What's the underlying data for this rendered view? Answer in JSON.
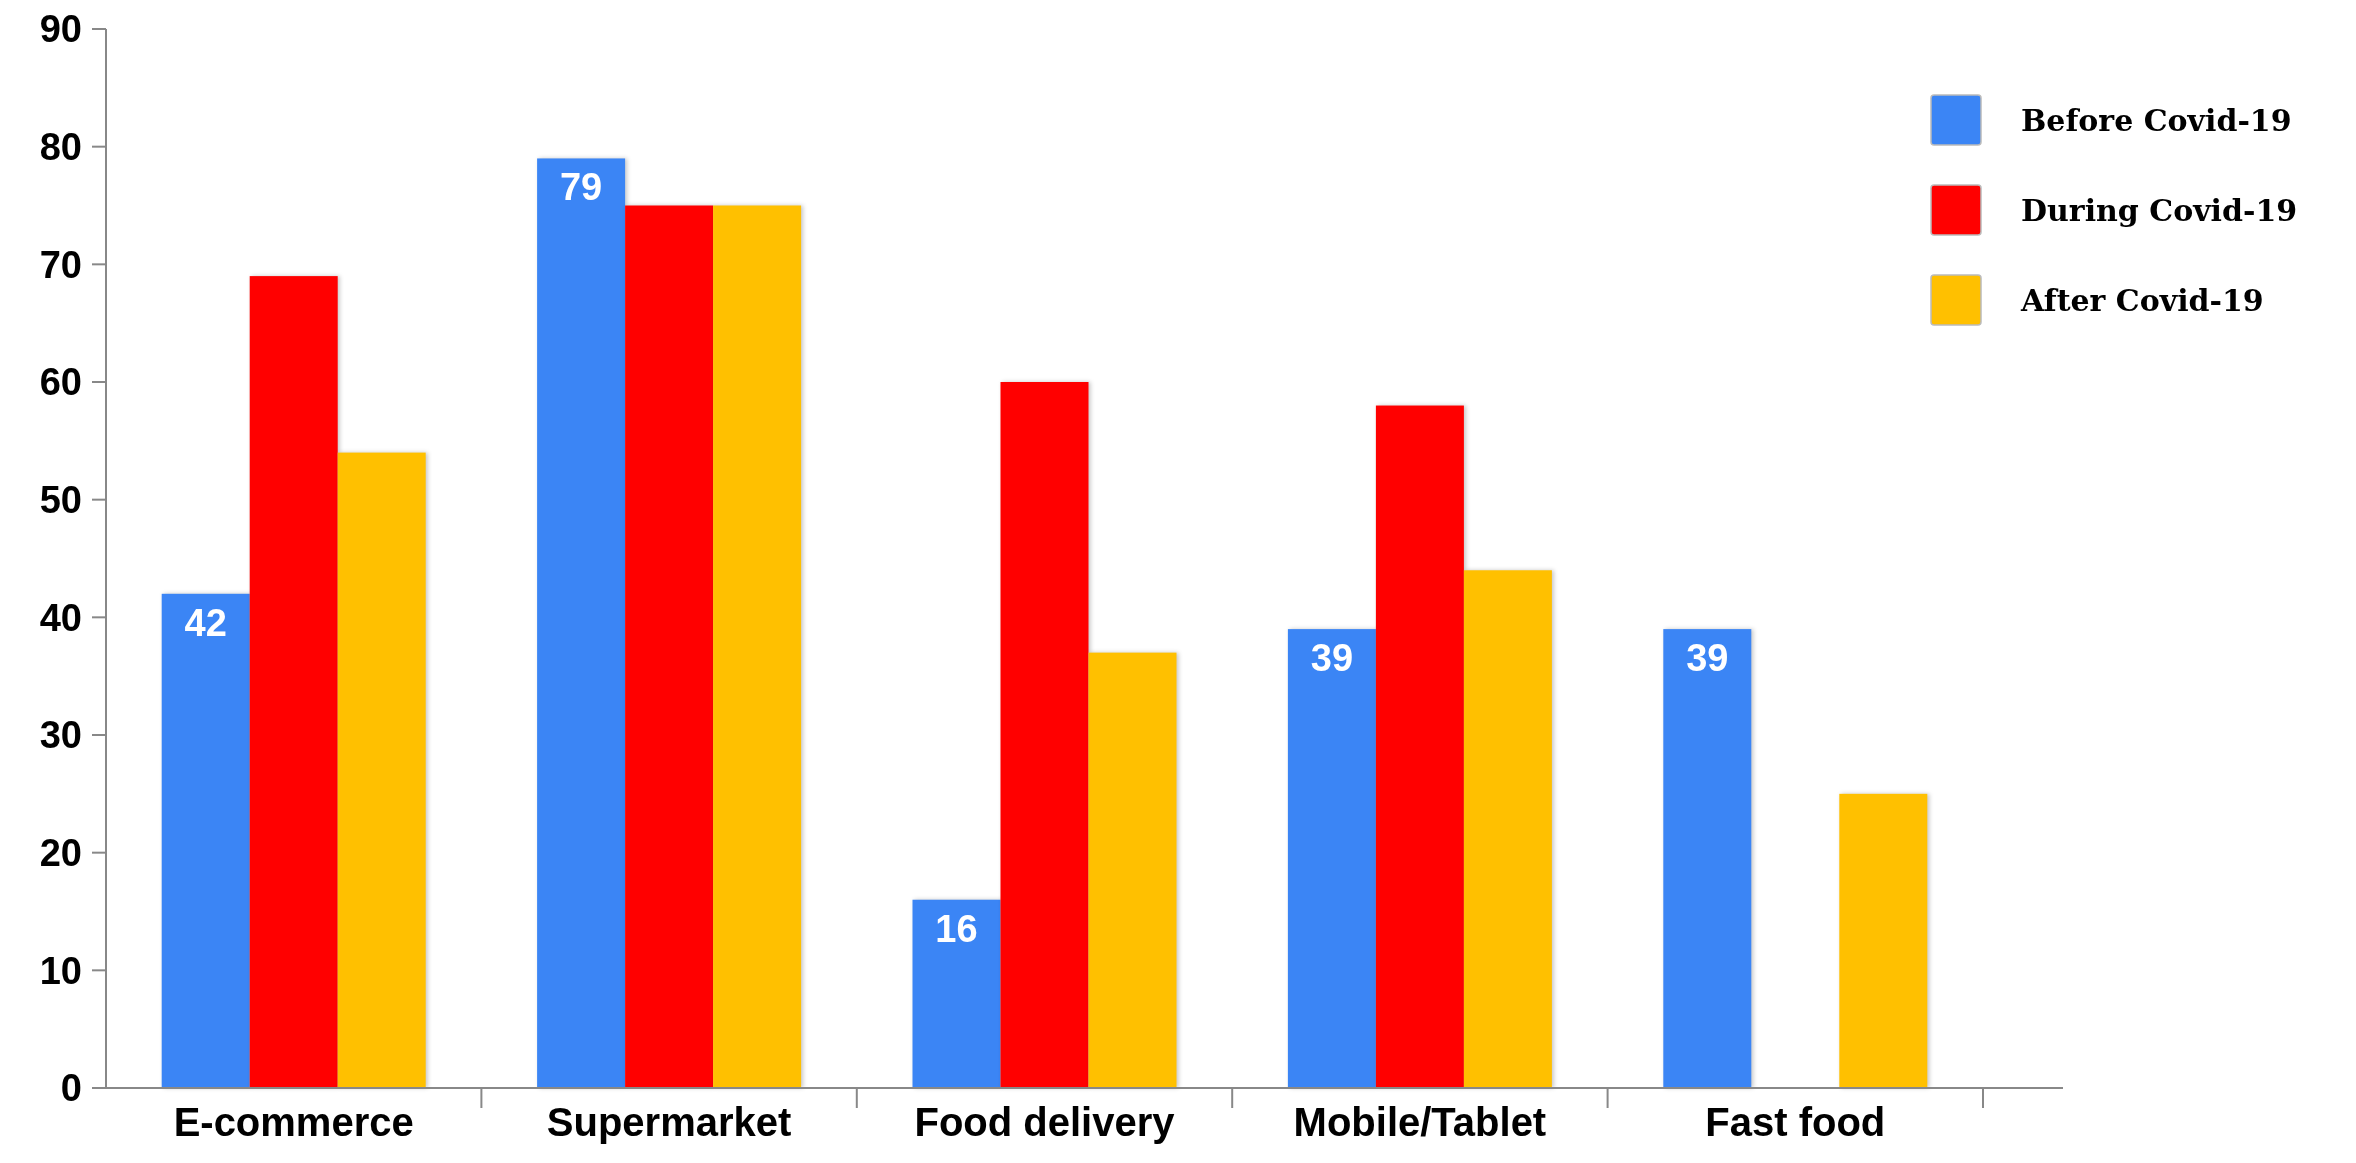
{
  "chart_data": {
    "type": "bar",
    "categories": [
      "E-commerce",
      "Supermarket",
      "Food delivery",
      "Mobile/Tablet",
      "Fast food"
    ],
    "series": [
      {
        "name": "Before Covid-19",
        "color": "#3b85f5",
        "values": [
          42,
          79,
          16,
          39,
          39
        ],
        "value_labels": [
          "42",
          "79",
          "16",
          "39",
          "39"
        ]
      },
      {
        "name": "During Covid-19",
        "color": "#ff0000",
        "values": [
          69,
          75,
          60,
          58,
          null
        ]
      },
      {
        "name": "After Covid-19",
        "color": "#ffc000",
        "values": [
          54,
          75,
          37,
          44,
          25
        ]
      }
    ],
    "ylim": [
      0,
      90
    ],
    "yticks": [
      0,
      10,
      20,
      30,
      40,
      50,
      60,
      70,
      80,
      90
    ],
    "grid": false,
    "legend": "top right"
  }
}
